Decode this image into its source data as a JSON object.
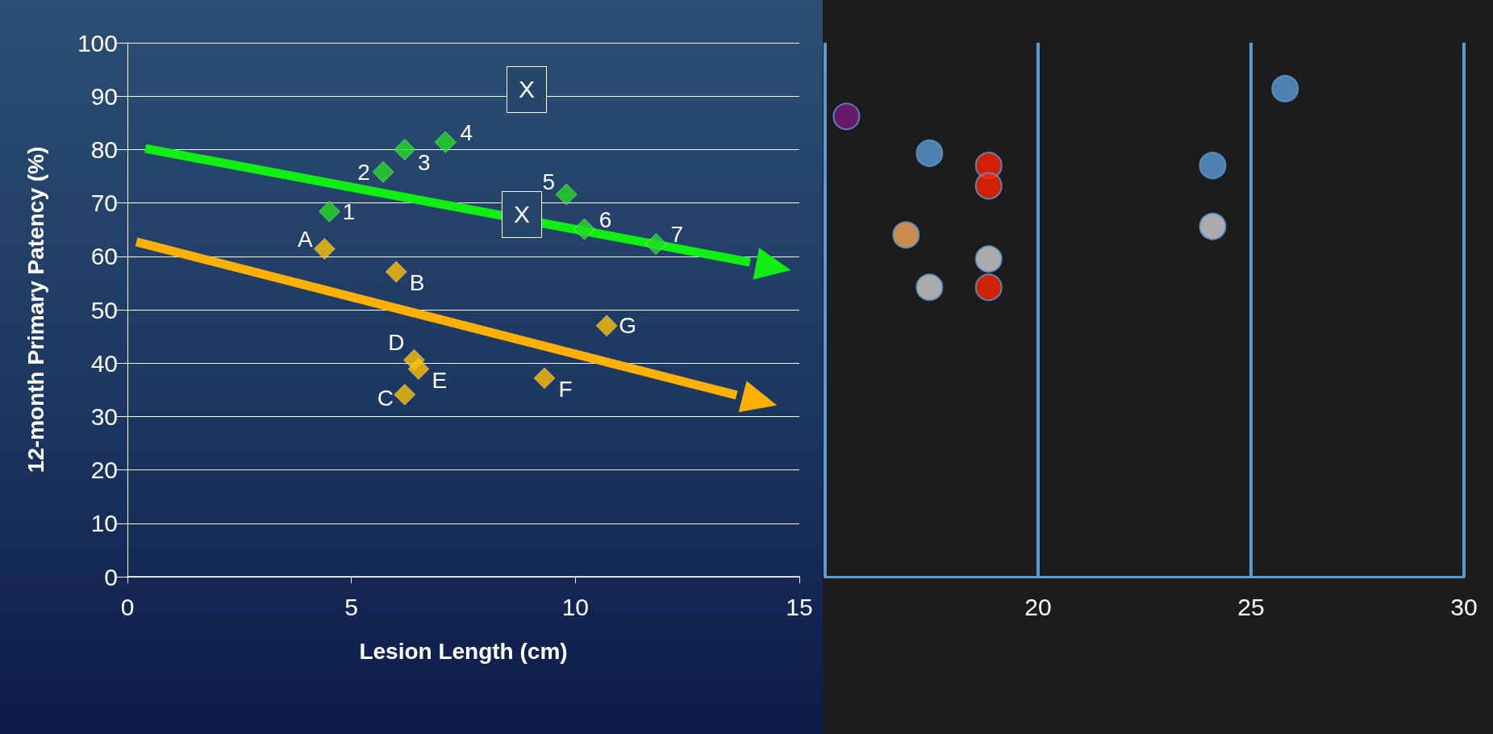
{
  "chart_data": [
    {
      "type": "scatter",
      "xlabel": "Lesion Length (cm)",
      "ylabel": "12-month Primary Patency (%)",
      "xlim": [
        0,
        15
      ],
      "ylim": [
        0,
        100
      ],
      "xticks": [
        0,
        5,
        10,
        15
      ],
      "yticks": [
        0,
        10,
        20,
        30,
        40,
        50,
        60,
        70,
        80,
        90,
        100
      ],
      "grid": "y",
      "marker": "diamond",
      "series": [
        {
          "color": "#22dd22",
          "x": [
            4.51,
            5.71,
            6.19,
            7.1,
            9.8,
            10.2,
            11.8
          ],
          "values": [
            68.4,
            75.8,
            80,
            81.4,
            71.6,
            65.1,
            62.3
          ]
        },
        {
          "color": "#ffc000",
          "x": [
            4.4,
            6.0,
            6.19,
            6.4,
            6.5,
            9.31,
            10.7
          ],
          "values": [
            61.4,
            57.1,
            34.1,
            40.6,
            38.9,
            37.2,
            47.0
          ]
        },
        {
          "type": "line",
          "marker": "none",
          "color": "#11ee11",
          "x": [
            0.4,
            13.9
          ],
          "values": [
            80.2,
            58.9
          ]
        },
        {
          "type": "line",
          "marker": "none",
          "color": "#ffb000",
          "x": [
            0.2,
            13.6
          ],
          "values": [
            62.7,
            34.0
          ]
        }
      ],
      "annotations": [
        "X",
        "X",
        {
          "text": "1",
          "x": 4.51,
          "y": 68.4
        },
        {
          "text": "2",
          "x": 5.71,
          "y": 75.8
        },
        {
          "text": "3",
          "x": 6.19,
          "y": 80
        },
        {
          "text": "4",
          "x": 7.1,
          "y": 81.4
        },
        {
          "text": "5",
          "x": 9.8,
          "y": 71.6
        },
        {
          "text": "6",
          "x": 10.2,
          "y": 65.1
        },
        {
          "text": "7",
          "x": 11.8,
          "y": 62.3
        },
        {
          "text": "A",
          "x": 4.4,
          "y": 61.4
        },
        {
          "text": "B",
          "x": 6.0,
          "y": 57.1
        },
        {
          "text": "C",
          "x": 6.19,
          "y": 34.1
        },
        {
          "text": "D",
          "x": 6.4,
          "y": 40.6
        },
        {
          "text": "E",
          "x": 6.5,
          "y": 38.9
        },
        {
          "text": "F",
          "x": 9.31,
          "y": 37.2
        },
        {
          "text": "G",
          "x": 10.7,
          "y": 47.0
        }
      ]
    },
    {
      "type": "scatter",
      "xlim": [
        15,
        30
      ],
      "ylim": [
        0,
        100
      ],
      "xticks": [
        {
          "value": 15,
          "label": null
        },
        20,
        25,
        30
      ],
      "tick_labels": "x",
      "grid": "x",
      "marker": "circle",
      "series": [
        {
          "color": "#7b1a7b",
          "x": [
            15.5
          ],
          "values": [
            86.2
          ]
        },
        {
          "color": "#5b9bd5",
          "x": [
            17.45,
            24.1,
            25.8
          ],
          "values": [
            79.3,
            77.0,
            91.4
          ]
        },
        {
          "color": "#ff2200",
          "x": [
            18.84,
            18.84,
            18.84
          ],
          "values": [
            77.0,
            73.2,
            54.2
          ]
        },
        {
          "color": "#f8a85a",
          "x": [
            16.9
          ],
          "values": [
            64.0
          ]
        },
        {
          "color": "#d0d0d0",
          "x": [
            18.84,
            17.45,
            24.1
          ],
          "values": [
            59.5,
            54.2,
            65.6
          ]
        }
      ]
    }
  ]
}
